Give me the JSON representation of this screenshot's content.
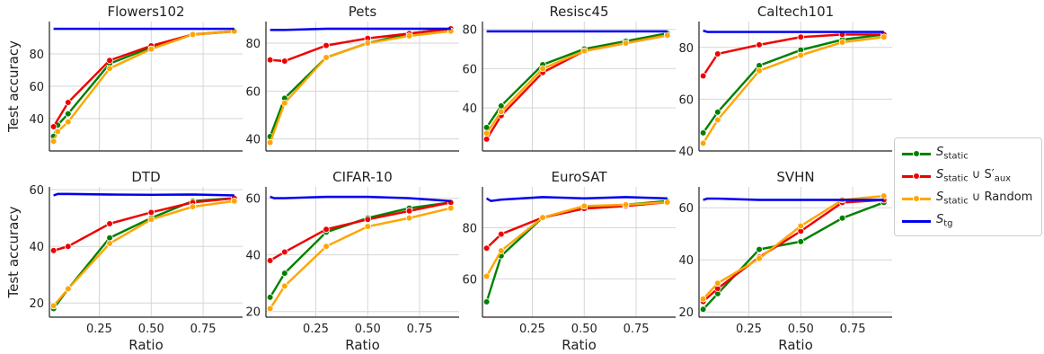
{
  "chart_data": [
    {
      "type": "line",
      "title": "Flowers102",
      "ylabel": "Test accuracy",
      "xlabel": "",
      "ylim": [
        20,
        100
      ],
      "yticks": [
        40,
        60,
        80
      ],
      "x": [
        0.03,
        0.05,
        0.1,
        0.3,
        0.5,
        0.7,
        0.9
      ],
      "series": [
        {
          "name": "S_static",
          "values": [
            29,
            36,
            43,
            74,
            84,
            92,
            94
          ]
        },
        {
          "name": "S_static ∪ S'_aux",
          "values": [
            35,
            null,
            50,
            76,
            85,
            92,
            94
          ]
        },
        {
          "name": "S_static ∪ Random",
          "values": [
            26,
            32,
            38,
            71,
            83,
            92,
            94
          ]
        },
        {
          "name": "S_tg",
          "values": [
            95.5,
            95.5,
            95.5,
            95.5,
            95.5,
            95.5,
            95.5
          ]
        }
      ]
    },
    {
      "type": "line",
      "title": "Pets",
      "ylabel": "",
      "xlabel": "",
      "ylim": [
        35,
        89
      ],
      "yticks": [
        40,
        60,
        80
      ],
      "x": [
        0.03,
        0.05,
        0.1,
        0.3,
        0.5,
        0.7,
        0.9
      ],
      "series": [
        {
          "name": "S_static",
          "values": [
            41,
            null,
            57,
            74,
            80,
            84,
            86
          ]
        },
        {
          "name": "S_static ∪ S'_aux",
          "values": [
            73,
            null,
            72.5,
            79,
            82,
            84,
            86
          ]
        },
        {
          "name": "S_static ∪ Random",
          "values": [
            38.5,
            null,
            55,
            74,
            80,
            83,
            85
          ]
        },
        {
          "name": "S_tg",
          "values": [
            85.5,
            85.5,
            85.5,
            86,
            86,
            86,
            86
          ]
        }
      ]
    },
    {
      "type": "line",
      "title": "Resisc45",
      "ylabel": "",
      "xlabel": "",
      "ylim": [
        18,
        84
      ],
      "yticks": [
        40,
        60,
        80
      ],
      "x": [
        0.03,
        0.05,
        0.1,
        0.3,
        0.5,
        0.7,
        0.9
      ],
      "series": [
        {
          "name": "S_static",
          "values": [
            30,
            null,
            41,
            62,
            70,
            74,
            78
          ]
        },
        {
          "name": "S_static ∪ S'_aux",
          "values": [
            24,
            null,
            36,
            58,
            69,
            73,
            77
          ]
        },
        {
          "name": "S_static ∪ Random",
          "values": [
            27,
            null,
            38,
            60,
            69,
            73,
            77
          ]
        },
        {
          "name": "S_tg",
          "values": [
            79,
            79,
            79,
            79,
            79,
            79,
            79
          ]
        }
      ]
    },
    {
      "type": "line",
      "title": "Caltech101",
      "ylabel": "",
      "xlabel": "",
      "ylim": [
        40,
        90
      ],
      "yticks": [
        40,
        60,
        80
      ],
      "x": [
        0.03,
        0.05,
        0.1,
        0.3,
        0.5,
        0.7,
        0.9
      ],
      "series": [
        {
          "name": "S_static",
          "values": [
            47,
            null,
            55,
            73,
            79,
            83,
            85
          ]
        },
        {
          "name": "S_static ∪ S'_aux",
          "values": [
            69,
            null,
            77.5,
            81,
            84,
            85,
            85
          ]
        },
        {
          "name": "S_static ∪ Random",
          "values": [
            43,
            null,
            52,
            71,
            77,
            82,
            84
          ]
        },
        {
          "name": "S_tg",
          "values": [
            86.5,
            86,
            86,
            86,
            86,
            86,
            86
          ]
        }
      ]
    },
    {
      "type": "line",
      "title": "DTD",
      "ylabel": "Test accuracy",
      "xlabel": "Ratio",
      "ylim": [
        15,
        61
      ],
      "yticks": [
        20,
        40,
        60
      ],
      "x": [
        0.03,
        0.05,
        0.1,
        0.3,
        0.5,
        0.7,
        0.9
      ],
      "series": [
        {
          "name": "S_static",
          "values": [
            18,
            null,
            25,
            43,
            50,
            56,
            57
          ]
        },
        {
          "name": "S_static ∪ S'_aux",
          "values": [
            38.5,
            null,
            40,
            48,
            52,
            55.5,
            57
          ]
        },
        {
          "name": "S_static ∪ Random",
          "values": [
            19,
            null,
            25,
            41,
            49.5,
            54,
            56
          ]
        },
        {
          "name": "S_tg",
          "values": [
            58,
            58.5,
            58.5,
            58.3,
            58.2,
            58.3,
            58
          ]
        }
      ]
    },
    {
      "type": "line",
      "title": "CIFAR-10",
      "ylabel": "",
      "xlabel": "Ratio",
      "ylim": [
        18,
        64
      ],
      "yticks": [
        20,
        40,
        60
      ],
      "x": [
        0.03,
        0.05,
        0.1,
        0.3,
        0.5,
        0.7,
        0.9
      ],
      "series": [
        {
          "name": "S_static",
          "values": [
            25,
            null,
            33.5,
            48,
            53,
            56.5,
            58.5
          ]
        },
        {
          "name": "S_static ∪ S'_aux",
          "values": [
            38,
            null,
            41,
            49,
            52.5,
            55.5,
            58.5
          ]
        },
        {
          "name": "S_static ∪ Random",
          "values": [
            21,
            null,
            29,
            43,
            50,
            53,
            56.5
          ]
        },
        {
          "name": "S_tg",
          "values": [
            60.5,
            60,
            60,
            60.5,
            60.5,
            60,
            59
          ]
        }
      ]
    },
    {
      "type": "line",
      "title": "EuroSAT",
      "ylabel": "",
      "xlabel": "Ratio",
      "ylim": [
        45,
        96
      ],
      "yticks": [
        60,
        80
      ],
      "x": [
        0.03,
        0.05,
        0.1,
        0.3,
        0.5,
        0.7,
        0.9
      ],
      "series": [
        {
          "name": "S_static",
          "values": [
            51,
            null,
            69,
            84,
            88,
            89,
            90.5
          ]
        },
        {
          "name": "S_static ∪ S'_aux",
          "values": [
            72,
            null,
            77.5,
            84,
            87.5,
            88.5,
            90
          ]
        },
        {
          "name": "S_static ∪ Random",
          "values": [
            61,
            null,
            71,
            84,
            88.5,
            89,
            90
          ]
        },
        {
          "name": "S_tg",
          "values": [
            91.5,
            90.5,
            91,
            92,
            91.5,
            92,
            91.5
          ]
        }
      ]
    },
    {
      "type": "line",
      "title": "SVHN",
      "ylabel": "",
      "xlabel": "Ratio",
      "ylim": [
        18,
        68
      ],
      "yticks": [
        20,
        40,
        60
      ],
      "x": [
        0.03,
        0.05,
        0.1,
        0.3,
        0.5,
        0.7,
        0.9
      ],
      "series": [
        {
          "name": "S_static",
          "values": [
            21,
            null,
            27,
            44,
            47,
            56,
            62
          ]
        },
        {
          "name": "S_static ∪ S'_aux",
          "values": [
            24,
            null,
            29,
            41,
            51,
            62,
            63
          ]
        },
        {
          "name": "S_static ∪ Random",
          "values": [
            25,
            null,
            31,
            40.5,
            53,
            63,
            64.5
          ]
        },
        {
          "name": "S_tg",
          "values": [
            63,
            63.5,
            63.5,
            63,
            63,
            63,
            63
          ]
        }
      ]
    }
  ],
  "xticks": [
    "0.25",
    "0.50",
    "0.75"
  ],
  "xtick_values": [
    0.25,
    0.5,
    0.75
  ],
  "xlim": [
    0.01,
    0.94
  ],
  "legend": {
    "placement": "right",
    "items": [
      {
        "label": "S",
        "sub": "static",
        "suffix": "",
        "color": "#008000"
      },
      {
        "label": "S",
        "sub": "static",
        "suffix": " ∪ S′",
        "sub2": "aux",
        "color": "#ee0000"
      },
      {
        "label": "S",
        "sub": "static",
        "suffix": " ∪  Random",
        "color": "#ffa500"
      },
      {
        "label": "S",
        "sub": "tg",
        "suffix": "",
        "color": "#0000ee"
      }
    ]
  },
  "colors": [
    "#008000",
    "#ee0000",
    "#ffa500",
    "#0000ee"
  ],
  "grid": true
}
